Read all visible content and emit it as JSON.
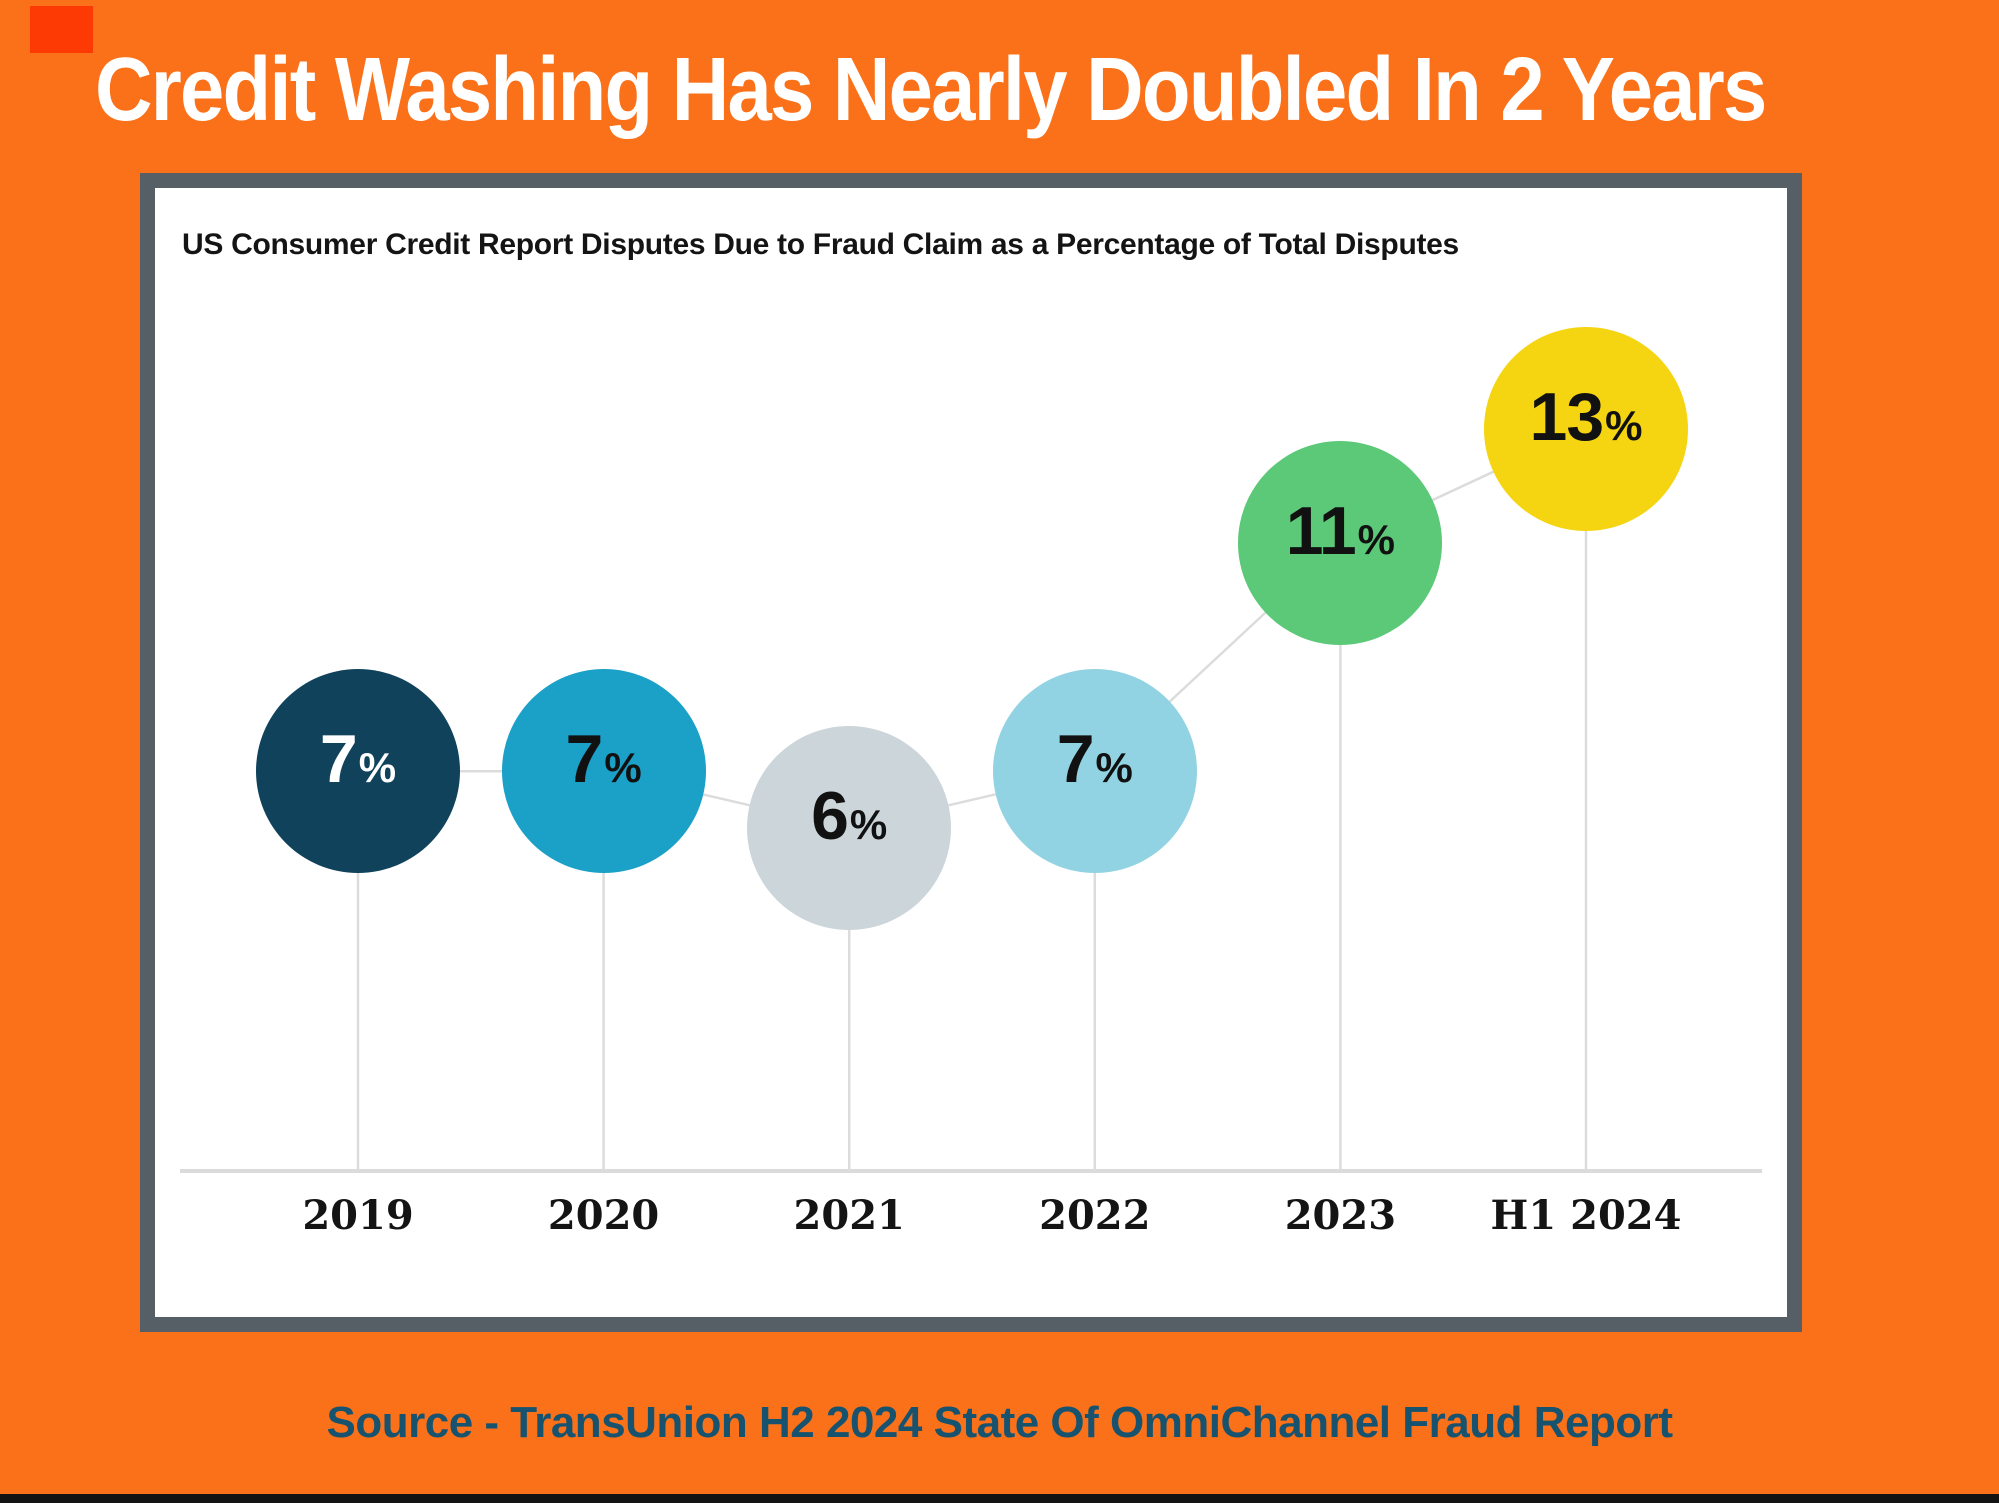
{
  "page": {
    "title": "Credit Washing Has Nearly Doubled In 2 Years",
    "source_line": "Source - TransUnion H2 2024 State Of OmniChannel Fraud Report"
  },
  "colors": {
    "background_orange": "#FA7119",
    "corner_accent_red": "#FD3A03",
    "card_border_gray": "#575F66",
    "card_background": "#FFFFFF",
    "connector_line": "#DCDCDC",
    "axis_line": "#DBDBDB",
    "title_text": "#FFFFFF",
    "subtitle_text": "#141414",
    "source_text": "#17536F",
    "bottom_strip": "#131313"
  },
  "chart_data": {
    "type": "scatter",
    "subtype": "connected-bubble",
    "title": "US Consumer Credit Report Disputes Due to Fraud Claim as a Percentage of Total Disputes",
    "categories": [
      "2019",
      "2020",
      "2021",
      "2022",
      "2023",
      "H1 2024"
    ],
    "values": [
      7,
      7,
      6,
      7,
      11,
      13
    ],
    "value_labels": [
      "7%",
      "7%",
      "6%",
      "7%",
      "11%",
      "13%"
    ],
    "unit": "%",
    "ylim": [
      0,
      18
    ],
    "grid": false,
    "legend": false,
    "xlabel": "",
    "ylabel": "",
    "point_colors": [
      "#10425C",
      "#1BA0C7",
      "#CBD5DA",
      "#92D3E3",
      "#5CC979",
      "#F5D411"
    ],
    "value_text_colors": [
      "#FFFFFF",
      "#111111",
      "#111111",
      "#111111",
      "#111111",
      "#111111"
    ]
  }
}
